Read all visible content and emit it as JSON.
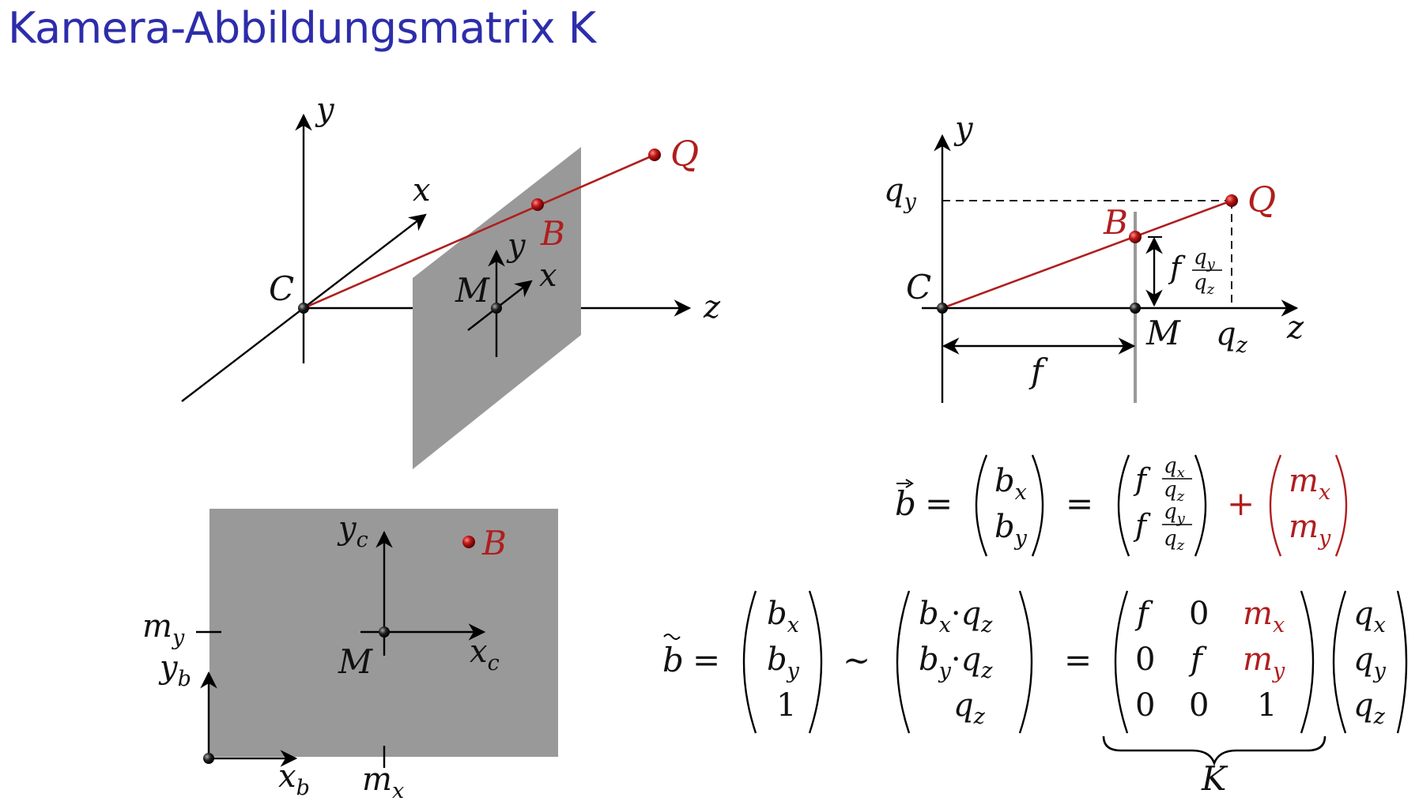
{
  "title": "Kamera-Abbildungsmatrix K",
  "colors": {
    "title": "#2d2dab",
    "ray": "#b01e1e",
    "plane": "#999999",
    "axis": "#000000"
  },
  "diagram3d": {
    "y": "y",
    "x": "x",
    "z": "z",
    "C": "C",
    "M": "M",
    "B": "B",
    "Q": "Q",
    "plane_y": "y",
    "plane_x": "x"
  },
  "side_view": {
    "y": "y",
    "z": "z",
    "C": "C",
    "M": "M",
    "B": "B",
    "Q": "Q",
    "qy": "q",
    "qy_sub": "y",
    "qz": "q",
    "qz_sub": "z",
    "f": "f",
    "frac_f": "f",
    "frac_num": "q",
    "frac_num_sub": "y",
    "frac_den": "q",
    "frac_den_sub": "z"
  },
  "image_plane": {
    "yc": "y",
    "yc_sub": "c",
    "xc": "x",
    "xc_sub": "c",
    "M": "M",
    "B": "B",
    "my": "m",
    "my_sub": "y",
    "yb": "y",
    "yb_sub": "b",
    "xb": "x",
    "xb_sub": "b",
    "mx": "m",
    "mx_sub": "x"
  },
  "eq1": {
    "lhs": "b",
    "vec_b": [
      [
        "b",
        "x"
      ],
      [
        "b",
        "y"
      ]
    ],
    "frac_rows": [
      {
        "f": "f",
        "num": "q",
        "num_sub": "x",
        "den": "q",
        "den_sub": "z"
      },
      {
        "f": "f",
        "num": "q",
        "num_sub": "y",
        "den": "q",
        "den_sub": "z"
      }
    ],
    "plus": "+",
    "vec_m": [
      [
        "m",
        "x"
      ],
      [
        "m",
        "y"
      ]
    ]
  },
  "eq2": {
    "lhs": "b",
    "vec_b": [
      [
        "b",
        "x"
      ],
      [
        "b",
        "y"
      ],
      [
        "1",
        ""
      ]
    ],
    "sim": "∼",
    "vec_bq": [
      {
        "a": "b",
        "a_sub": "x",
        "dot": "·",
        "c": "q",
        "c_sub": "z"
      },
      {
        "a": "b",
        "a_sub": "y",
        "dot": "·",
        "c": "q",
        "c_sub": "z"
      },
      {
        "a": "q",
        "a_sub": "z",
        "dot": "",
        "c": "",
        "c_sub": ""
      }
    ],
    "matrix": [
      [
        [
          "f",
          ""
        ],
        [
          "0",
          ""
        ],
        [
          "m",
          "x"
        ]
      ],
      [
        [
          "0",
          ""
        ],
        [
          "f",
          ""
        ],
        [
          "m",
          "y"
        ]
      ],
      [
        [
          "0",
          ""
        ],
        [
          "0",
          ""
        ],
        [
          "1",
          ""
        ]
      ]
    ],
    "vec_q": [
      [
        "q",
        "x"
      ],
      [
        "q",
        "y"
      ],
      [
        "q",
        "z"
      ]
    ],
    "brace_label": "K",
    "equals": "="
  }
}
